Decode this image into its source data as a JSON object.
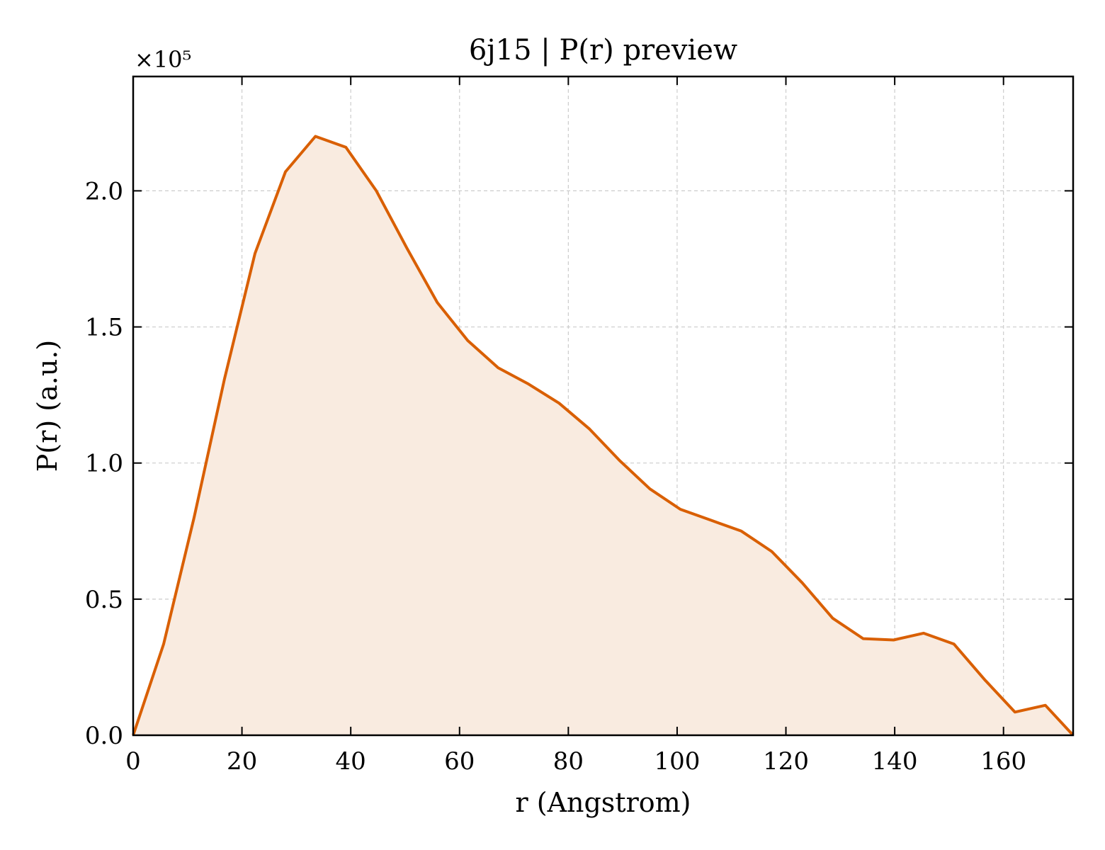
{
  "chart_data": {
    "type": "area",
    "title": "6j15 | P(r) preview",
    "xlabel": "r (Angstrom)",
    "ylabel": "P(r) (a.u.)",
    "y_multiplier_label": "×10⁵",
    "xlim": [
      0,
      172.8
    ],
    "ylim": [
      0,
      2.42
    ],
    "xticks": [
      0,
      20,
      40,
      60,
      80,
      100,
      120,
      140,
      160
    ],
    "yticks": [
      0.0,
      0.5,
      1.0,
      1.5,
      2.0
    ],
    "xtick_labels": [
      "0",
      "20",
      "40",
      "60",
      "80",
      "100",
      "120",
      "140",
      "160"
    ],
    "ytick_labels": [
      "0.0",
      "0.5",
      "1.0",
      "1.5",
      "2.0"
    ],
    "grid": true,
    "line_color": "#d95f02",
    "fill_color": "#f9ebe0",
    "series": [
      {
        "x": [
          0,
          5.6,
          11.2,
          16.8,
          22.4,
          28.0,
          33.5,
          39.1,
          44.7,
          50.3,
          55.9,
          61.5,
          67.1,
          72.7,
          78.3,
          83.9,
          89.4,
          95.0,
          100.6,
          106.2,
          111.8,
          117.4,
          123.0,
          128.6,
          134.2,
          139.8,
          145.3,
          150.9,
          156.5,
          162.1,
          167.7,
          172.8
        ],
        "y": [
          0.0,
          0.335,
          0.8,
          1.31,
          1.77,
          2.07,
          2.2,
          2.16,
          2.0,
          1.79,
          1.59,
          1.45,
          1.35,
          1.29,
          1.22,
          1.125,
          1.01,
          0.905,
          0.83,
          0.79,
          0.75,
          0.675,
          0.56,
          0.43,
          0.355,
          0.35,
          0.375,
          0.335,
          0.205,
          0.085,
          0.11,
          0.0
        ]
      }
    ]
  }
}
